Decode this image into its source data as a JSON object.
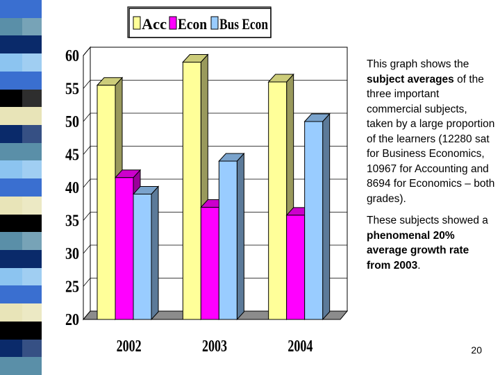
{
  "slide": {
    "strip_colors": [
      "#3a6fd0",
      "#5a8fa8",
      "#0a2a6a",
      "#8cc4f0",
      "#3a6fd0",
      "#000000",
      "#e8e4b8",
      "#0a2a6a",
      "#5a8fa8",
      "#8cc4f0",
      "#3a6fd0",
      "#e8e4b8",
      "#000000",
      "#5a8fa8",
      "#0a2a6a",
      "#8cc4f0",
      "#3a6fd0",
      "#e8e4b8",
      "#000000",
      "#0a2a6a",
      "#5a8fa8"
    ],
    "text": {
      "p1_a": "This graph shows the ",
      "p1_b": "subject averages",
      "p1_c": " of the three important commercial subjects, taken by a large proportion of the learners (12280 sat for Business Economics, 10967 for Accounting and  8694 for Economics – both grades).",
      "p2_a": "These subjects showed a ",
      "p2_b": "phenomenal 20% average growth rate from 2003",
      "p2_c": "."
    },
    "page_number": "20"
  },
  "chart_data": {
    "type": "bar",
    "style": "3d-clustered",
    "categories": [
      "2002",
      "2003",
      "2004"
    ],
    "series": [
      {
        "name": "Acc",
        "color": "#ffff99",
        "values": [
          55.5,
          59,
          56
        ]
      },
      {
        "name": "Econ",
        "color": "#ff00ff",
        "values": [
          41.5,
          37,
          35.8
        ]
      },
      {
        "name": "Bus Econ",
        "color": "#99ccff",
        "values": [
          39,
          44,
          50
        ]
      }
    ],
    "ylim": [
      20,
      60
    ],
    "yticks": [
      20,
      25,
      30,
      35,
      40,
      45,
      50,
      55,
      60
    ],
    "legend_position": "top",
    "grid": true
  }
}
